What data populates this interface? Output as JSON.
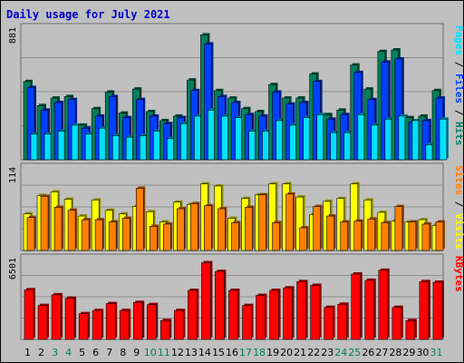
{
  "chart_data": {
    "type": "bar",
    "title": "Daily usage for July 2021",
    "categories": [
      "1",
      "2",
      "3",
      "4",
      "5",
      "6",
      "7",
      "8",
      "9",
      "10",
      "11",
      "12",
      "13",
      "14",
      "15",
      "16",
      "17",
      "18",
      "19",
      "20",
      "21",
      "22",
      "23",
      "24",
      "25",
      "26",
      "27",
      "28",
      "29",
      "30",
      "31"
    ],
    "weekend_days": [
      "3",
      "4",
      "10",
      "11",
      "17",
      "18",
      "24",
      "25",
      "31"
    ],
    "panels": [
      {
        "name": "hits-files-pages",
        "ymax_label": "881",
        "ylim": [
          0,
          881
        ],
        "grid": true,
        "series": [
          {
            "name": "Hits",
            "color": "#00805c",
            "values": [
              520,
              360,
              410,
              420,
              230,
              340,
              450,
              310,
              470,
              320,
              260,
              290,
              530,
              830,
              460,
              410,
              340,
              320,
              500,
              410,
              410,
              570,
              300,
              330,
              630,
              470,
              720,
              730,
              280,
              290,
              460
            ]
          },
          {
            "name": "Files",
            "color": "#0040ff",
            "values": [
              480,
              330,
              380,
              400,
              210,
              290,
              420,
              280,
              400,
              290,
              240,
              280,
              460,
              770,
              420,
              380,
              300,
              290,
              450,
              370,
              380,
              520,
              270,
              300,
              580,
              400,
              650,
              670,
              250,
              260,
              410
            ]
          },
          {
            "name": "Pages",
            "color": "#00e0ff",
            "values": [
              170,
              170,
              190,
              230,
              170,
              210,
              160,
              150,
              160,
              190,
              140,
              240,
              290,
              330,
              290,
              280,
              190,
              190,
              260,
              230,
              280,
              300,
              180,
              180,
              300,
              230,
              270,
              290,
              260,
              100,
              270
            ]
          }
        ]
      },
      {
        "name": "visits-sites",
        "ymax_label": "114",
        "ylim": [
          0,
          114
        ],
        "grid": true,
        "series": [
          {
            "name": "Visits",
            "color": "#ffff00",
            "values": [
              50,
              75,
              80,
              70,
              47,
              69,
              55,
              50,
              60,
              53,
              39,
              66,
              63,
              91,
              88,
              44,
              71,
              76,
              91,
              91,
              73,
              49,
              67,
              71,
              91,
              69,
              52,
              40,
              39,
              42,
              34
            ]
          },
          {
            "name": "Sites",
            "color": "#ff8000",
            "values": [
              45,
              74,
              59,
              55,
              42,
              42,
              39,
              44,
              85,
              33,
              36,
              57,
              64,
              61,
              57,
              38,
              59,
              76,
              38,
              77,
              31,
              60,
              47,
              39,
              40,
              43,
              38,
              60,
              39,
              36,
              39
            ]
          }
        ]
      },
      {
        "name": "kbytes",
        "ymax_label": "6501",
        "ylim": [
          0,
          6501
        ],
        "grid": true,
        "series": [
          {
            "name": "KBytes",
            "color": "#ff0000",
            "values": [
              3950,
              2700,
              3550,
              3280,
              2050,
              2300,
              2850,
              2300,
              2940,
              2770,
              1500,
              2300,
              3900,
              6100,
              5410,
              3900,
              2700,
              3500,
              3900,
              4100,
              4600,
              4300,
              2550,
              2800,
              5200,
              4700,
              5500,
              2550,
              1500,
              4600,
              4550
            ]
          }
        ]
      }
    ]
  },
  "right_labels": {
    "panel1": [
      {
        "text": "Pages",
        "color": "#00e0ff"
      },
      {
        "text": " / ",
        "color": "#000000"
      },
      {
        "text": "Files",
        "color": "#0040ff"
      },
      {
        "text": " / ",
        "color": "#000000"
      },
      {
        "text": "Hits",
        "color": "#00805c"
      }
    ],
    "panel2": [
      {
        "text": "Sites",
        "color": "#ff8000"
      },
      {
        "text": " / ",
        "color": "#000000"
      },
      {
        "text": "Visits",
        "color": "#ffff00"
      }
    ],
    "panel3": [
      {
        "text": "KBytes",
        "color": "#ff0000"
      }
    ]
  },
  "colors": {
    "background": "#c0c0c0",
    "title": "#0000cc",
    "weekday_label": "#000000",
    "weekend_label": "#00805c"
  }
}
